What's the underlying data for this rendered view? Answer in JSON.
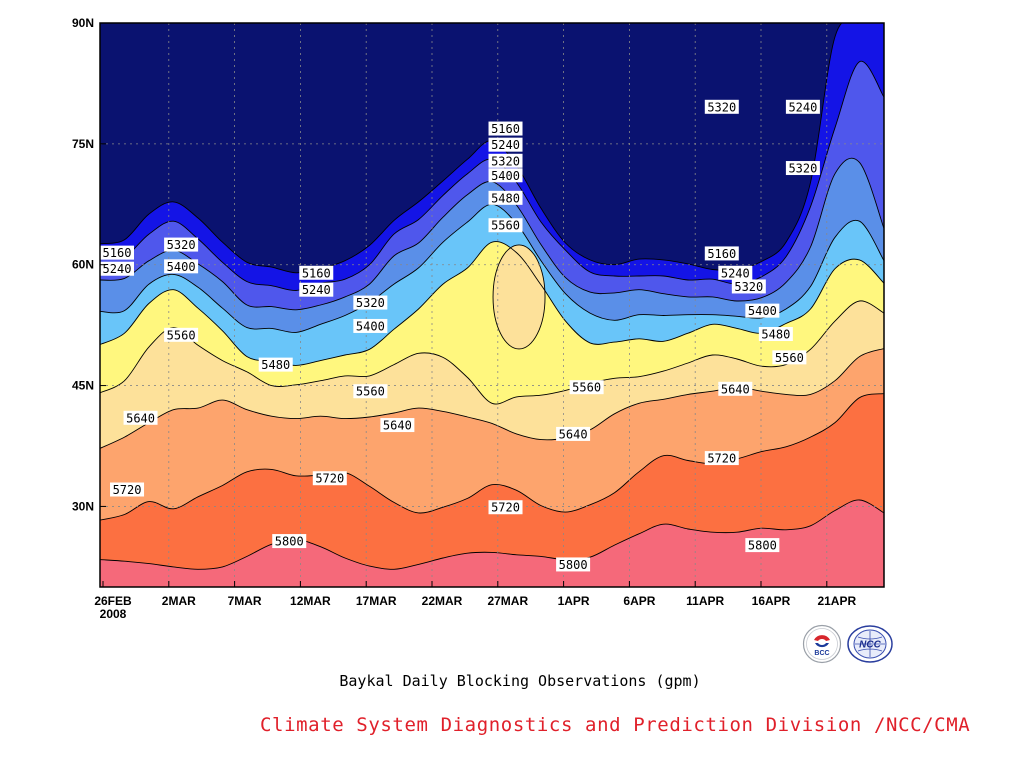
{
  "chart_data": {
    "type": "filled-contour",
    "title": "Baykal Daily Blocking Observations (gpm)",
    "x_tick_labels": [
      "26FEB",
      "2MAR",
      "7MAR",
      "12MAR",
      "17MAR",
      "22MAR",
      "27MAR",
      "1APR",
      "6APR",
      "11APR",
      "16APR",
      "21APR"
    ],
    "x_year_label": "2008",
    "x_range": [
      "2008-02-26",
      "2008-04-24"
    ],
    "y_tick_labels": [
      "30N",
      "45N",
      "60N",
      "75N",
      "90N"
    ],
    "y_range_deg": [
      20,
      90
    ],
    "grid": "dotted",
    "contour_levels_gpm": [
      5160,
      5240,
      5320,
      5400,
      5480,
      5560,
      5640,
      5720,
      5800
    ],
    "fill_colors": [
      "#0a1270",
      "#1414e6",
      "#4f57ec",
      "#5a8fe8",
      "#69c5f9",
      "#fff77e",
      "#fde19a",
      "#fda46d",
      "#fc7041",
      "#f5697a"
    ],
    "contours": [
      {
        "level": 5800,
        "lat": [
          23.4,
          23.2,
          22.9,
          22.5,
          22.2,
          22.5,
          23.8,
          25.3,
          25.9,
          25.0,
          23.6,
          22.6,
          22.2,
          22.8,
          23.6,
          24.2,
          24.3,
          24.0,
          23.8,
          23.4,
          23.7,
          25.2,
          26.6,
          27.8,
          27.2,
          26.8,
          26.8,
          27.3,
          27.1,
          27.6,
          29.5,
          30.8,
          29.2
        ]
      },
      {
        "level": 5720,
        "lat": [
          28.3,
          29.0,
          30.6,
          29.7,
          31.2,
          32.6,
          34.3,
          34.6,
          33.8,
          33.9,
          34.2,
          32.5,
          30.5,
          29.2,
          29.9,
          31.0,
          32.7,
          32.0,
          30.1,
          29.3,
          30.2,
          31.7,
          34.3,
          36.3,
          35.7,
          35.3,
          35.9,
          36.8,
          37.4,
          38.6,
          40.4,
          43.5,
          44.0
        ]
      },
      {
        "level": 5640,
        "lat": [
          37.2,
          38.6,
          40.4,
          42.0,
          42.2,
          43.2,
          42.0,
          41.2,
          40.9,
          41.2,
          40.9,
          41.1,
          41.6,
          42.2,
          41.8,
          41.1,
          40.3,
          39.0,
          38.3,
          38.5,
          39.5,
          41.5,
          42.8,
          43.3,
          43.9,
          44.3,
          44.8,
          44.3,
          43.9,
          43.9,
          45.6,
          48.6,
          49.6
        ]
      },
      {
        "level": 5560,
        "lat": [
          44.1,
          45.6,
          49.8,
          52.2,
          50.0,
          48.1,
          46.7,
          45.0,
          45.1,
          45.6,
          46.2,
          46.2,
          47.6,
          49.0,
          48.5,
          46.0,
          42.8,
          43.6,
          43.8,
          44.4,
          45.3,
          45.9,
          46.1,
          46.8,
          47.8,
          48.8,
          48.3,
          47.4,
          47.6,
          49.5,
          53.0,
          55.5,
          54.0
        ]
      },
      {
        "level": 5480,
        "lat": [
          50.1,
          51.5,
          55.2,
          56.9,
          54.6,
          51.8,
          48.6,
          48.0,
          47.5,
          48.1,
          48.8,
          49.5,
          52.0,
          54.5,
          57.6,
          59.6,
          62.8,
          61.5,
          57.5,
          53.0,
          50.3,
          50.4,
          50.8,
          50.5,
          51.5,
          52.6,
          52.1,
          51.5,
          52.7,
          54.5,
          59.5,
          60.6,
          57.7
        ]
      },
      {
        "level": 5400,
        "lat": [
          54.2,
          54.3,
          57.6,
          58.8,
          57.2,
          54.6,
          52.2,
          52.1,
          51.6,
          52.6,
          53.7,
          55.3,
          57.6,
          59.6,
          62.8,
          65.3,
          67.5,
          65.1,
          60.5,
          56.4,
          54.0,
          53.1,
          53.8,
          53.7,
          53.8,
          53.8,
          53.6,
          53.4,
          54.5,
          57.3,
          63.4,
          65.4,
          60.5
        ]
      },
      {
        "level": 5320,
        "lat": [
          58.1,
          58.3,
          60.5,
          61.8,
          60.1,
          57.9,
          55.0,
          54.8,
          54.4,
          55.0,
          56.0,
          57.6,
          61.1,
          62.7,
          65.9,
          68.7,
          70.3,
          67.4,
          62.5,
          58.4,
          56.6,
          56.5,
          56.9,
          56.4,
          56.0,
          56.0,
          55.5,
          55.9,
          57.8,
          62.2,
          71.3,
          72.7,
          64.5
        ]
      },
      {
        "level": 5240,
        "lat": [
          60.9,
          61.0,
          63.8,
          65.4,
          63.2,
          60.3,
          57.9,
          57.4,
          56.8,
          57.7,
          58.2,
          60.0,
          63.8,
          65.6,
          68.6,
          71.3,
          73.1,
          70.2,
          65.3,
          61.8,
          59.1,
          58.6,
          58.6,
          58.6,
          58.1,
          58.2,
          57.6,
          58.5,
          61.0,
          67.2,
          77.0,
          85.2,
          80.8
        ]
      },
      {
        "level": 5160,
        "lat": [
          62.6,
          63.1,
          66.3,
          67.8,
          65.8,
          62.8,
          60.3,
          59.7,
          59.0,
          59.5,
          60.5,
          62.4,
          65.5,
          67.8,
          70.4,
          73.1,
          75.4,
          72.3,
          67.0,
          62.7,
          60.6,
          60.0,
          60.7,
          60.6,
          60.1,
          59.4,
          59.4,
          60.4,
          62.8,
          70.2,
          88.3,
          90.0,
          90.0
        ]
      }
    ],
    "high_centers": [
      {
        "date": "2008-03-28",
        "lat": 56,
        "value": "5560 closed"
      }
    ],
    "contour_labels": [
      {
        "text": "5160",
        "date": "2008-02-26",
        "lat": 61.5
      },
      {
        "text": "5240",
        "date": "2008-02-26",
        "lat": 59.5
      },
      {
        "text": "5320",
        "date": "2008-03-03",
        "lat": 62.5
      },
      {
        "text": "5400",
        "date": "2008-03-03",
        "lat": 59.8
      },
      {
        "text": "5560",
        "date": "2008-03-03",
        "lat": 51.3
      },
      {
        "text": "5640",
        "date": "2008-02-29",
        "lat": 41.0
      },
      {
        "text": "5720",
        "date": "2008-02-28",
        "lat": 32.1
      },
      {
        "text": "5160",
        "date": "2008-03-13",
        "lat": 59.0
      },
      {
        "text": "5240",
        "date": "2008-03-13",
        "lat": 56.9
      },
      {
        "text": "5320",
        "date": "2008-03-17",
        "lat": 55.3
      },
      {
        "text": "5400",
        "date": "2008-03-17",
        "lat": 52.4
      },
      {
        "text": "5480",
        "date": "2008-03-10",
        "lat": 47.6
      },
      {
        "text": "5560",
        "date": "2008-03-17",
        "lat": 44.3
      },
      {
        "text": "5640",
        "date": "2008-03-19",
        "lat": 40.1
      },
      {
        "text": "5720",
        "date": "2008-03-14",
        "lat": 33.5
      },
      {
        "text": "5800",
        "date": "2008-03-11",
        "lat": 25.7
      },
      {
        "text": "5160",
        "date": "2008-03-27",
        "lat": 76.9
      },
      {
        "text": "5240",
        "date": "2008-03-27",
        "lat": 74.9
      },
      {
        "text": "5320",
        "date": "2008-03-27",
        "lat": 72.9
      },
      {
        "text": "5400",
        "date": "2008-03-27",
        "lat": 71.1
      },
      {
        "text": "5480",
        "date": "2008-03-27",
        "lat": 68.3
      },
      {
        "text": "5560",
        "date": "2008-03-27",
        "lat": 64.9
      },
      {
        "text": "5720",
        "date": "2008-03-27",
        "lat": 29.9
      },
      {
        "text": "5800",
        "date": "2008-04-01",
        "lat": 22.8
      },
      {
        "text": "5560",
        "date": "2008-04-02",
        "lat": 44.8
      },
      {
        "text": "5640",
        "date": "2008-04-01",
        "lat": 39.0
      },
      {
        "text": "5160",
        "date": "2008-04-12",
        "lat": 61.4
      },
      {
        "text": "5240",
        "date": "2008-04-13",
        "lat": 59.0
      },
      {
        "text": "5320",
        "date": "2008-04-14",
        "lat": 57.3
      },
      {
        "text": "5400",
        "date": "2008-04-15",
        "lat": 54.3
      },
      {
        "text": "5480",
        "date": "2008-04-16",
        "lat": 51.4
      },
      {
        "text": "5560",
        "date": "2008-04-17",
        "lat": 48.5
      },
      {
        "text": "5640",
        "date": "2008-04-13",
        "lat": 44.6
      },
      {
        "text": "5720",
        "date": "2008-04-12",
        "lat": 36.0
      },
      {
        "text": "5800",
        "date": "2008-04-15",
        "lat": 25.2
      },
      {
        "text": "5320",
        "date": "2008-04-12",
        "lat": 79.6
      },
      {
        "text": "5240",
        "date": "2008-04-18",
        "lat": 79.6
      },
      {
        "text": "5320",
        "date": "2008-04-18",
        "lat": 72.0
      }
    ]
  },
  "footer": {
    "title": "Baykal Daily Blocking Observations (gpm)",
    "credit": "Climate System Diagnostics and Prediction Division /NCC/CMA"
  },
  "logos": {
    "bcc_text": "BCC",
    "ncc_text": "NCC"
  }
}
